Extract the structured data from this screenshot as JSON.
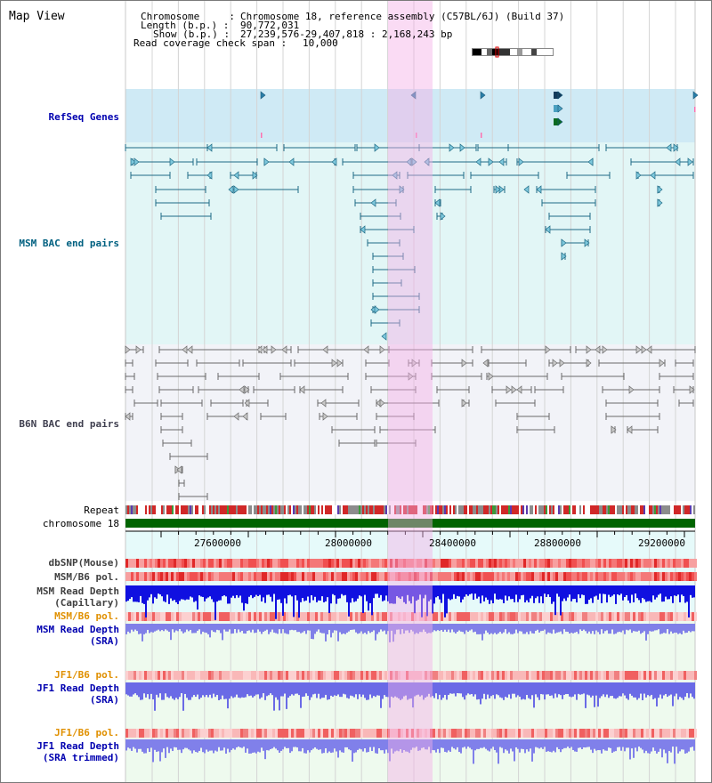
{
  "title": "Map View",
  "header": {
    "chrom_key": "Chromosome     :",
    "chrom_val": "Chromosome 18, reference assembly (C57BL/6J) (Build 37)",
    "len_key": "Length (b.p.) :",
    "len_val": "90,772,031",
    "show_key": "Show (b.p.) :",
    "show_val": "27,239,576-29,407,818 : 2,168,243 bp",
    "cov_key": "Read coverage check span :",
    "cov_val": "10,000"
  },
  "tracks": {
    "refseq": "RefSeq Genes",
    "msm_bac": "MSM BAC end pairs",
    "b6n_bac": "B6N BAC end pairs",
    "repeat": "Repeat",
    "chrom": "chromosome 18",
    "dbsnp": "dbSNP(Mouse)",
    "msm_pol1": "MSM/B6 pol.",
    "msm_depth_cap": "MSM Read Depth\n(Capillary)",
    "msm_pol2": "MSM/B6 pol.",
    "msm_depth_sra": "MSM Read Depth\n(SRA)",
    "jf1_pol1": "JF1/B6 pol.",
    "jf1_depth_sra": "JF1 Read Depth\n(SRA)",
    "jf1_pol2": "JF1/B6 pol.",
    "jf1_depth_trim": "JF1 Read Depth\n(SRA trimmed)"
  },
  "axis_ticks": [
    "27600000",
    "28000000",
    "28400000",
    "28800000",
    "29200000"
  ],
  "colors": {
    "refseq_label": "#0000b0",
    "msm_label": "#006080",
    "b6n_label": "#404050",
    "orange_label": "#e09000",
    "blue_label": "#0000b0",
    "chrom_bar": "#006400",
    "highlight": "#f5b0e6"
  }
}
